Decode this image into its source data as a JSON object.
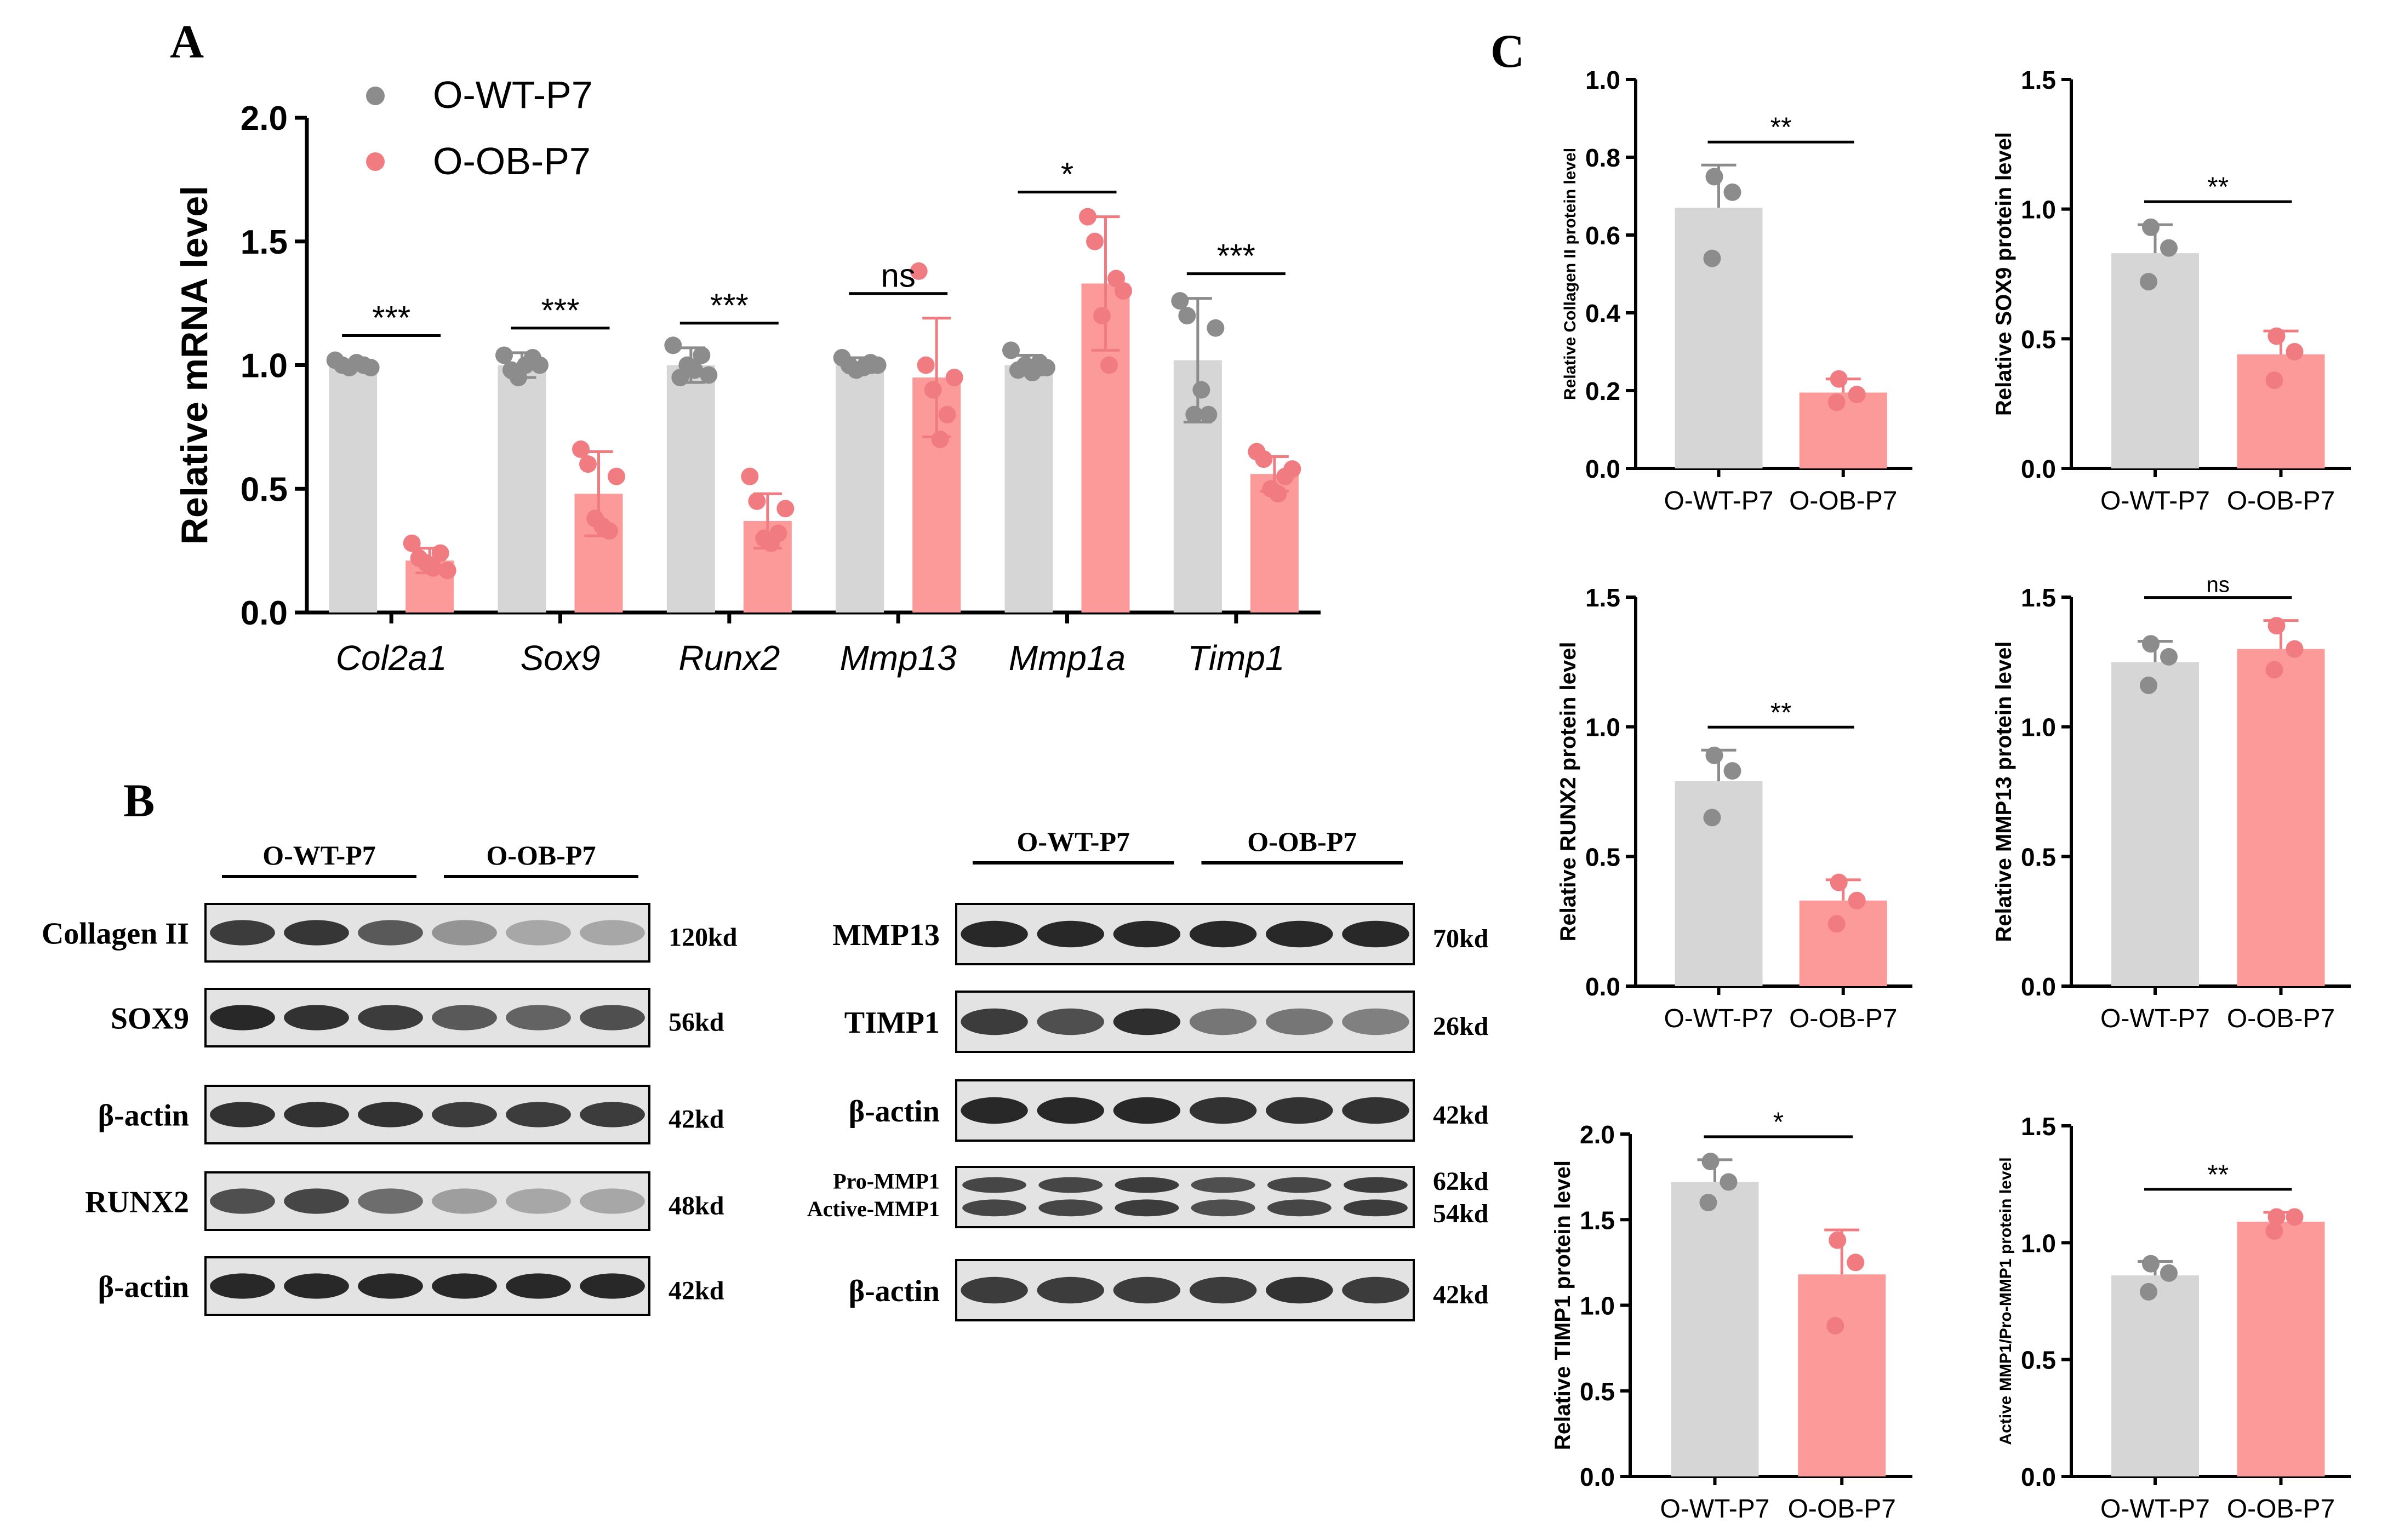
{
  "colors": {
    "wt": "#d6d6d6",
    "ob": "#fb9a99",
    "wt_dot": "#8c8c8c",
    "ob_dot": "#f07c82",
    "axis": "#000000",
    "band": "#1e1e1e",
    "blot_bg": "#e3e3e3"
  },
  "panel_labels": {
    "a": "A",
    "b": "B",
    "c": "C"
  },
  "chart_data": [
    {
      "id": "A",
      "type": "bar",
      "title": "",
      "xlabel": "",
      "ylabel": "Relative mRNA level",
      "ylim": [
        0,
        2.0
      ],
      "yticks": [
        "0.0",
        "0.5",
        "1.0",
        "1.5",
        "2.0"
      ],
      "ytick_values": [
        0,
        0.5,
        1.0,
        1.5,
        2.0
      ],
      "categories": [
        "Col2a1",
        "Sox9",
        "Runx2",
        "Mmp13",
        "Mmp1a",
        "Timp1"
      ],
      "legend": [
        "O-WT-P7",
        "O-OB-P7"
      ],
      "significance": [
        "***",
        "***",
        "***",
        "ns",
        "*",
        "***"
      ],
      "series": [
        {
          "name": "O-WT-P7",
          "values": [
            1.0,
            1.0,
            1.0,
            1.0,
            1.0,
            1.02
          ],
          "errors": [
            0.02,
            0.05,
            0.07,
            0.03,
            0.04,
            0.25
          ],
          "points": [
            [
              1.02,
              1.0,
              0.99,
              1.01,
              1.0,
              0.99
            ],
            [
              1.04,
              0.98,
              0.95,
              1.0,
              1.03,
              1.0
            ],
            [
              1.08,
              0.95,
              1.0,
              0.98,
              1.04,
              0.96
            ],
            [
              1.03,
              1.0,
              0.98,
              0.99,
              1.01,
              1.0
            ],
            [
              1.06,
              0.98,
              1.0,
              0.97,
              1.01,
              0.99
            ],
            [
              1.26,
              1.2,
              0.8,
              0.9,
              0.8,
              1.15
            ]
          ]
        },
        {
          "name": "O-OB-P7",
          "values": [
            0.21,
            0.48,
            0.37,
            0.95,
            1.33,
            0.56
          ],
          "errors": [
            0.05,
            0.17,
            0.11,
            0.24,
            0.27,
            0.07
          ],
          "points": [
            [
              0.28,
              0.22,
              0.2,
              0.18,
              0.24,
              0.17
            ],
            [
              0.66,
              0.6,
              0.38,
              0.35,
              0.33,
              0.55
            ],
            [
              0.55,
              0.45,
              0.3,
              0.28,
              0.32,
              0.42
            ],
            [
              1.38,
              1.0,
              0.9,
              0.7,
              0.8,
              0.95
            ],
            [
              1.6,
              1.5,
              1.2,
              1.0,
              1.35,
              1.3
            ],
            [
              0.65,
              0.62,
              0.5,
              0.48,
              0.55,
              0.58
            ]
          ]
        }
      ]
    },
    {
      "id": "C1",
      "type": "bar",
      "ylabel": "Relative Collagen II protein level",
      "ylim": [
        0,
        1.0
      ],
      "yticks": [
        "0.0",
        "0.2",
        "0.4",
        "0.6",
        "0.8",
        "1.0"
      ],
      "ytick_values": [
        0,
        0.2,
        0.4,
        0.6,
        0.8,
        1.0
      ],
      "categories": [
        "O-WT-P7",
        "O-OB-P7"
      ],
      "values": [
        0.67,
        0.195
      ],
      "errors": [
        0.11,
        0.035
      ],
      "points": [
        [
          0.75,
          0.71,
          0.54
        ],
        [
          0.23,
          0.19,
          0.17
        ]
      ],
      "significance": "**"
    },
    {
      "id": "C2",
      "type": "bar",
      "ylabel": "Relative SOX9 protein level",
      "ylim": [
        0,
        1.5
      ],
      "yticks": [
        "0.0",
        "0.5",
        "1.0",
        "1.5"
      ],
      "ytick_values": [
        0,
        0.5,
        1.0,
        1.5
      ],
      "categories": [
        "O-WT-P7",
        "O-OB-P7"
      ],
      "values": [
        0.83,
        0.44
      ],
      "errors": [
        0.11,
        0.09
      ],
      "points": [
        [
          0.93,
          0.85,
          0.72
        ],
        [
          0.51,
          0.45,
          0.34
        ]
      ],
      "significance": "**"
    },
    {
      "id": "C3",
      "type": "bar",
      "ylabel": "Relative RUNX2 protein level",
      "ylim": [
        0,
        1.5
      ],
      "yticks": [
        "0.0",
        "0.5",
        "1.0",
        "1.5"
      ],
      "ytick_values": [
        0,
        0.5,
        1.0,
        1.5
      ],
      "categories": [
        "O-WT-P7",
        "O-OB-P7"
      ],
      "values": [
        0.79,
        0.33
      ],
      "errors": [
        0.12,
        0.08
      ],
      "points": [
        [
          0.89,
          0.83,
          0.65
        ],
        [
          0.4,
          0.33,
          0.24
        ]
      ],
      "significance": "**"
    },
    {
      "id": "C4",
      "type": "bar",
      "ylabel": "Relative MMP13 protein level",
      "ylim": [
        0,
        1.5
      ],
      "yticks": [
        "0.0",
        "0.5",
        "1.0",
        "1.5"
      ],
      "ytick_values": [
        0,
        0.5,
        1.0,
        1.5
      ],
      "categories": [
        "O-WT-P7",
        "O-OB-P7"
      ],
      "values": [
        1.25,
        1.3
      ],
      "errors": [
        0.08,
        0.11
      ],
      "points": [
        [
          1.32,
          1.27,
          1.16
        ],
        [
          1.39,
          1.3,
          1.22
        ]
      ],
      "significance": "ns"
    },
    {
      "id": "C5",
      "type": "bar",
      "ylabel": "Relative TIMP1 protein level",
      "ylim": [
        0,
        2.0
      ],
      "yticks": [
        "0.0",
        "0.5",
        "1.0",
        "1.5",
        "2.0"
      ],
      "ytick_values": [
        0,
        0.5,
        1.0,
        1.5,
        2.0
      ],
      "categories": [
        "O-WT-P7",
        "O-OB-P7"
      ],
      "values": [
        1.72,
        1.18
      ],
      "errors": [
        0.13,
        0.26
      ],
      "points": [
        [
          1.84,
          1.72,
          1.6
        ],
        [
          1.38,
          1.25,
          0.88
        ]
      ],
      "significance": "*"
    },
    {
      "id": "C6",
      "type": "bar",
      "ylabel": "Active MMP1/Pro-MMP1 protein level",
      "ylim": [
        0,
        1.5
      ],
      "yticks": [
        "0.0",
        "0.5",
        "1.0",
        "1.5"
      ],
      "ytick_values": [
        0,
        0.5,
        1.0,
        1.5
      ],
      "categories": [
        "O-WT-P7",
        "O-OB-P7"
      ],
      "values": [
        0.86,
        1.09
      ],
      "errors": [
        0.06,
        0.04
      ],
      "points": [
        [
          0.91,
          0.87,
          0.79
        ],
        [
          1.11,
          1.11,
          1.05
        ]
      ],
      "significance": "**"
    }
  ],
  "blots": {
    "left": {
      "group_labels": [
        "O-WT-P7",
        "O-OB-P7"
      ],
      "rows": [
        {
          "name": "Collagen II",
          "kd": "120kd",
          "intensity": [
            0.85,
            0.88,
            0.7,
            0.4,
            0.3,
            0.3
          ],
          "bands": 1
        },
        {
          "name": "SOX9",
          "kd": "56kd",
          "intensity": [
            0.95,
            0.9,
            0.85,
            0.7,
            0.65,
            0.75
          ],
          "bands": 1
        },
        {
          "name": "β-actin",
          "kd": "42kd",
          "intensity": [
            0.9,
            0.9,
            0.9,
            0.85,
            0.85,
            0.85
          ],
          "bands": 1
        },
        {
          "name": "RUNX2",
          "kd": "48kd",
          "intensity": [
            0.75,
            0.8,
            0.6,
            0.35,
            0.3,
            0.3
          ],
          "bands": 1
        },
        {
          "name": "β-actin",
          "kd": "42kd",
          "intensity": [
            0.95,
            0.95,
            0.95,
            0.95,
            0.95,
            0.95
          ],
          "bands": 1
        }
      ]
    },
    "right": {
      "group_labels": [
        "O-WT-P7",
        "O-OB-P7"
      ],
      "rows": [
        {
          "name": "MMP13",
          "kd": "70kd",
          "intensity": [
            0.95,
            0.95,
            0.95,
            0.95,
            0.95,
            0.95
          ],
          "bands": 1
        },
        {
          "name": "TIMP1",
          "kd": "26kd",
          "intensity": [
            0.85,
            0.75,
            0.92,
            0.55,
            0.55,
            0.5
          ],
          "bands": 1
        },
        {
          "name": "β-actin",
          "kd": "42kd",
          "intensity": [
            0.95,
            0.95,
            0.95,
            0.9,
            0.9,
            0.9
          ],
          "bands": 1
        },
        {
          "name": "Pro-MMP1",
          "name2": "Active-MMP1",
          "kd": "62kd",
          "kd2": "54kd",
          "intensity": [
            0.8,
            0.8,
            0.85,
            0.75,
            0.8,
            0.85
          ],
          "bands": 2
        },
        {
          "name": "β-actin",
          "kd": "42kd",
          "intensity": [
            0.85,
            0.85,
            0.85,
            0.85,
            0.9,
            0.85
          ],
          "bands": 1
        }
      ]
    }
  }
}
